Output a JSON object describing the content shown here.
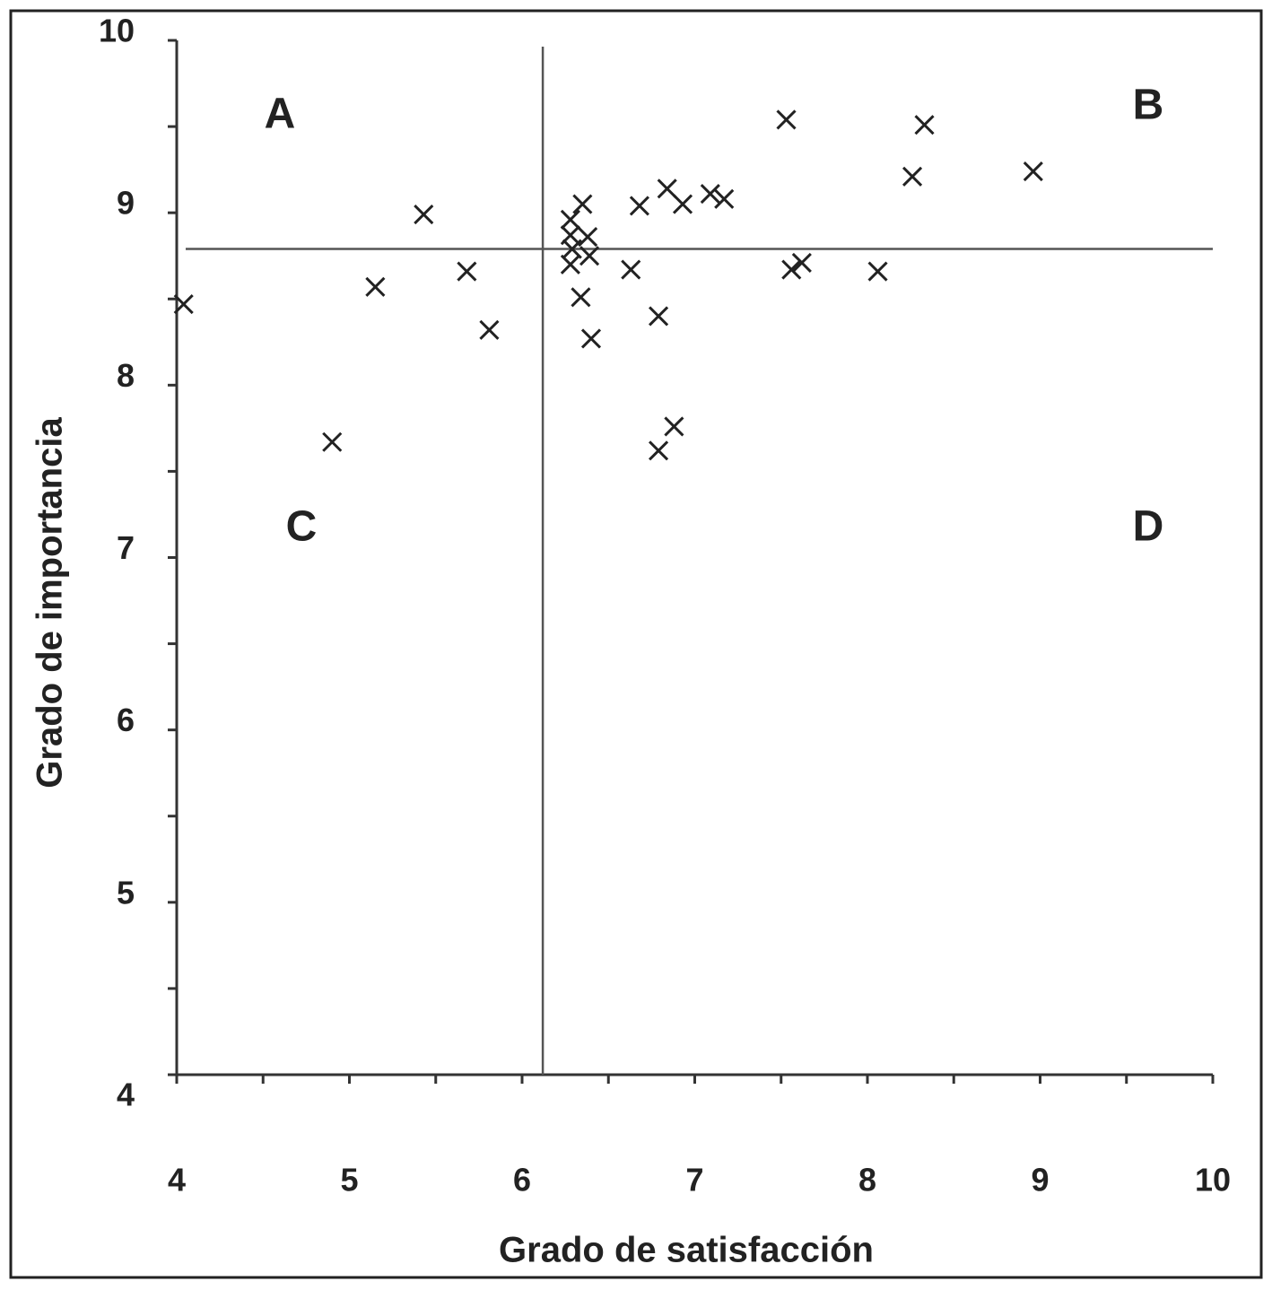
{
  "chart_data": {
    "type": "scatter",
    "x_label": "Grado de satisfacción",
    "y_label": "Grado de importancia",
    "xlim": [
      4,
      10
    ],
    "ylim": [
      4,
      10
    ],
    "xticks": [
      4,
      5,
      6,
      7,
      8,
      9,
      10
    ],
    "yticks": [
      4,
      5,
      6,
      7,
      8,
      9,
      10
    ],
    "xminorticks": [
      4.5,
      5.5,
      6.5,
      7.5,
      8.5,
      9.5
    ],
    "yminorticks": [
      4.5,
      5.5,
      6.5,
      7.5,
      8.5,
      9.5
    ],
    "reference_x": 6.12,
    "reference_y": 8.79,
    "quadrant_labels": [
      "A",
      "B",
      "C",
      "D"
    ],
    "marker": "x",
    "color": "#222222",
    "x": [
      4.04,
      4.9,
      5.15,
      5.43,
      5.68,
      5.81,
      6.28,
      6.28,
      6.29,
      6.28,
      6.35,
      6.38,
      6.39,
      6.34,
      6.4,
      6.63,
      6.68,
      6.79,
      6.79,
      6.88,
      6.84,
      6.93,
      7.09,
      7.17,
      7.53,
      7.56,
      7.62,
      8.06,
      8.26,
      8.33,
      8.96
    ],
    "values": [
      8.47,
      7.67,
      8.57,
      8.99,
      8.66,
      8.32,
      8.96,
      8.87,
      8.79,
      8.7,
      9.05,
      8.86,
      8.75,
      8.51,
      8.27,
      8.67,
      9.04,
      8.4,
      7.62,
      7.76,
      9.14,
      9.05,
      9.11,
      9.08,
      9.54,
      8.67,
      8.71,
      8.66,
      9.21,
      9.51,
      9.24
    ]
  }
}
